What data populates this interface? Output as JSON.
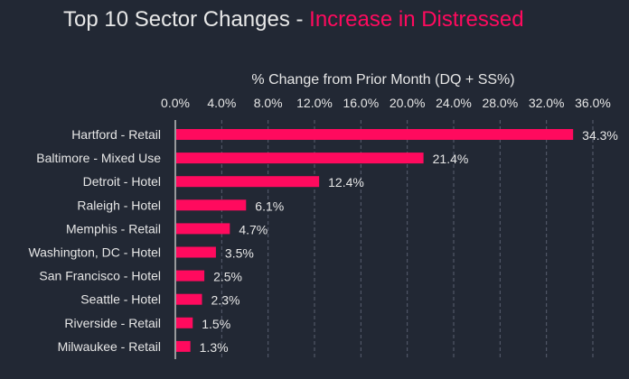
{
  "chart_data": {
    "type": "bar",
    "orientation": "horizontal",
    "title": "Top 10 Sector Changes - ",
    "title_highlight": "Increase in Distressed",
    "xlabel": "% Change from Prior Month (DQ + SS%)",
    "xlim": [
      0,
      36
    ],
    "x_ticks": [
      0,
      4,
      8,
      12,
      16,
      20,
      24,
      28,
      32,
      36
    ],
    "x_tick_labels": [
      "0.0%",
      "4.0%",
      "8.0%",
      "12.0%",
      "16.0%",
      "20.0%",
      "24.0%",
      "28.0%",
      "32.0%",
      "36.0%"
    ],
    "axis_position": "top",
    "grid": true,
    "categories": [
      "Hartford - Retail",
      "Baltimore - Mixed Use",
      "Detroit - Hotel",
      "Raleigh - Hotel",
      "Memphis - Retail",
      "Washington, DC - Hotel",
      "San Francisco - Hotel",
      "Seattle - Hotel",
      "Riverside - Retail",
      "Milwaukee - Retail"
    ],
    "values": [
      34.3,
      21.4,
      12.4,
      6.1,
      4.7,
      3.5,
      2.5,
      2.3,
      1.5,
      1.3
    ],
    "data_labels": [
      "34.3%",
      "21.4%",
      "12.4%",
      "6.1%",
      "4.7%",
      "3.5%",
      "2.5%",
      "2.3%",
      "1.5%",
      "1.3%"
    ],
    "colors": {
      "bar": "#ff0a5e",
      "background": "#222834",
      "highlight": "#ff0a5e"
    }
  }
}
